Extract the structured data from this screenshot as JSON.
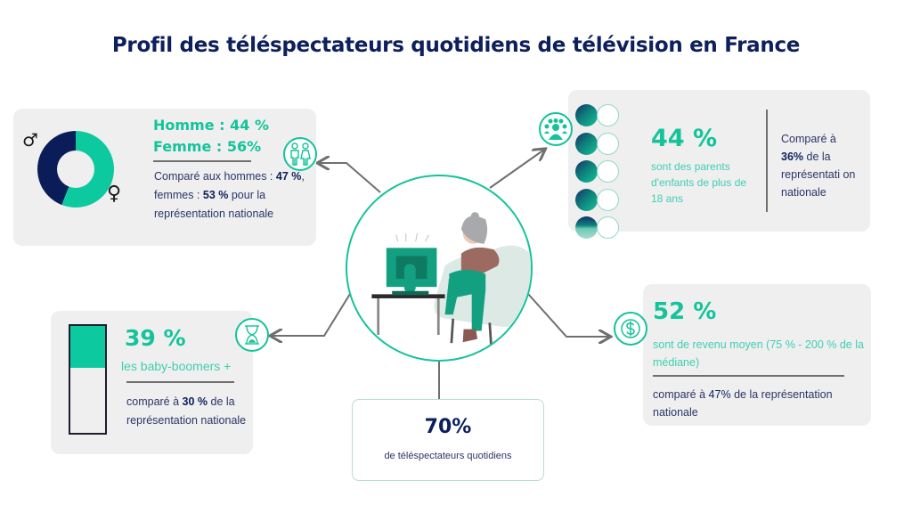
{
  "title": "Profil des téléspectateurs quotidiens de télévision en France",
  "colors": {
    "accent_teal": "#14c39a",
    "navy": "#0d1f5c",
    "card_bg": "#efefef",
    "line_gray": "#6f6f6f"
  },
  "gender": {
    "homme": "Homme : 44 %",
    "femme": "Femme : 56%",
    "compare_prefix": "Comparé aux hommes :",
    "compare_hommes": "47 %",
    "compare_mid": ", femmes : ",
    "compare_femmes": "53 %",
    "compare_suffix": "pour la représentation nationale",
    "male_symbol": "♂",
    "female_symbol": "♀",
    "icon": "couple-icon",
    "donut": {
      "male_pct": 44,
      "female_pct": 56,
      "male_color": "#0b1d58",
      "female_color": "#0dc9a0"
    }
  },
  "parents": {
    "value": "44 %",
    "label": "sont des parents d'enfants de plus de 18 ans",
    "compare_prefix": "Comparé à",
    "compare_value": "36%",
    "compare_suffix": "de la représentati on nationale",
    "icon": "group-icon",
    "dot_rows": 5
  },
  "boomers": {
    "value": "39 %",
    "label": "les baby-boomers +",
    "compare_prefix": "comparé à",
    "compare_value": "30 %",
    "compare_suffix": "de la représentation nationale",
    "icon": "hourglass-icon",
    "bar_fill_pct": 39
  },
  "income": {
    "value": "52 %",
    "label": "sont de revenu moyen (75 % - 200 % de la médiane)",
    "compare_prefix": "comparé à",
    "compare_value": "47%",
    "compare_suffix": "de la représentation nationale",
    "icon": "dollar-coin-icon"
  },
  "center": {
    "value": "70%",
    "label": "de téléspectateurs quotidiens",
    "illustration": "woman-watching-tv-illustration"
  }
}
